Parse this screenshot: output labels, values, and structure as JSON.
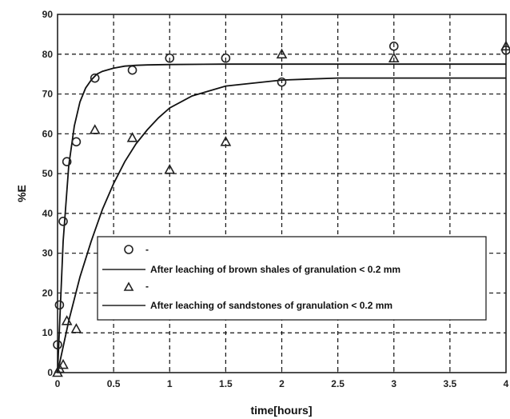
{
  "chart_data": {
    "type": "scatter",
    "xlabel": "time[hours]",
    "ylabel": "%E",
    "xlim": [
      0,
      4
    ],
    "ylim": [
      0,
      90
    ],
    "xticks": [
      "0",
      "0.5",
      "1",
      "1.5",
      "2",
      "2.5",
      "3",
      "3.5",
      "4"
    ],
    "yticks": [
      "0",
      "10",
      "20",
      "30",
      "40",
      "50",
      "60",
      "70",
      "80",
      "90"
    ],
    "grid": true,
    "legend_placement": "lower-right",
    "legend_entries": [
      "-",
      "After leaching of brown shales of granulation < 0.2 mm",
      "-",
      "After leaching of sandstones of granulation < 0.2 mm"
    ],
    "series": [
      {
        "marker": "circle",
        "x": [
          0,
          0.017,
          0.05,
          0.083,
          0.167,
          0.333,
          0.667,
          1,
          1.5,
          2,
          3,
          4
        ],
        "y": [
          7,
          17,
          38,
          53,
          58,
          74,
          76,
          79,
          79,
          73,
          82,
          81
        ]
      },
      {
        "marker": "triangle",
        "x": [
          0,
          0.017,
          0.05,
          0.083,
          0.167,
          0.333,
          0.667,
          1,
          1.5,
          2,
          3,
          4
        ],
        "y": [
          0,
          1,
          2,
          13,
          11,
          61,
          59,
          51,
          58,
          80,
          79,
          82
        ]
      },
      {
        "kind": "fit",
        "x": [
          0,
          0.05,
          0.1,
          0.15,
          0.2,
          0.25,
          0.3,
          0.35,
          0.4,
          0.5,
          0.6,
          0.7,
          0.8,
          1,
          1.5,
          2,
          2.5,
          3,
          3.5,
          4
        ],
        "y": [
          0,
          33,
          52,
          62,
          68,
          71.5,
          73.5,
          75,
          75.7,
          76.5,
          77,
          77.2,
          77.3,
          77.4,
          77.5,
          77.5,
          77.5,
          77.5,
          77.5,
          77.5
        ]
      },
      {
        "kind": "fit",
        "x": [
          0,
          0.1,
          0.2,
          0.3,
          0.4,
          0.5,
          0.6,
          0.7,
          0.8,
          0.9,
          1,
          1.2,
          1.5,
          2,
          2.5,
          3,
          3.5,
          4
        ],
        "y": [
          0,
          13,
          24,
          33,
          41,
          47.5,
          53,
          57.5,
          61,
          64,
          66.5,
          69.5,
          72,
          73.5,
          74,
          74,
          74,
          74
        ]
      }
    ]
  }
}
